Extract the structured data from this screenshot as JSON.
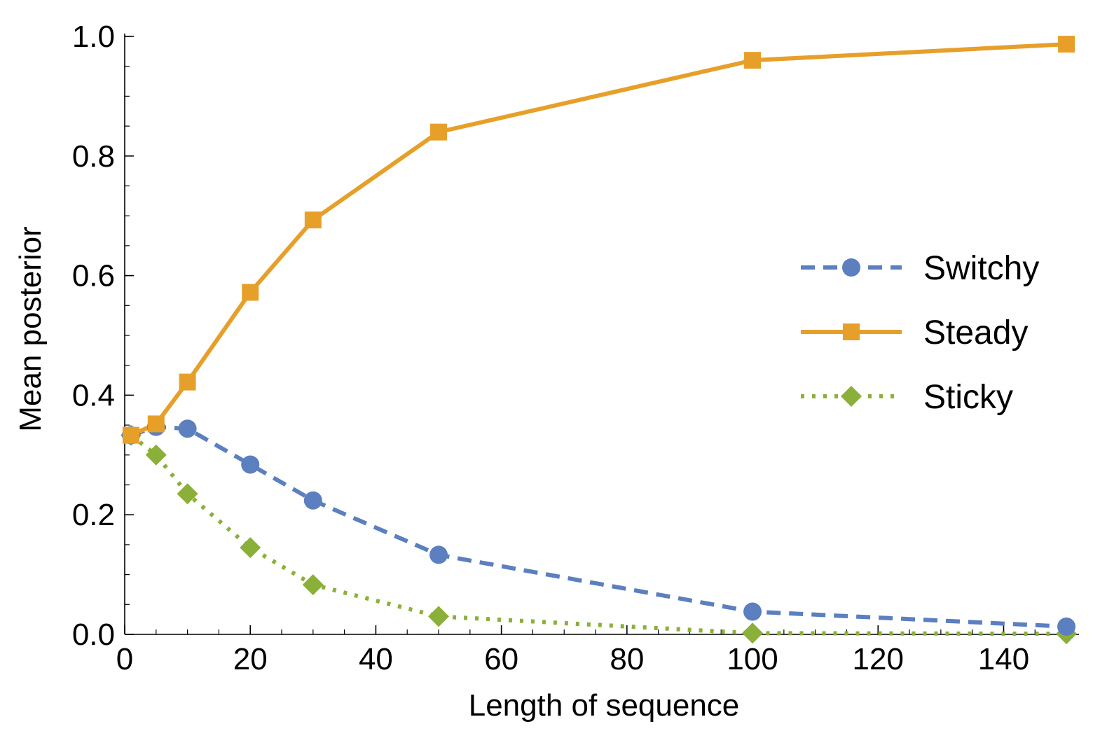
{
  "chart_data": {
    "type": "line",
    "title": "",
    "xlabel": "Length of sequence",
    "ylabel": "Mean posterior",
    "xlim": [
      0,
      152
    ],
    "ylim": [
      0,
      1.0
    ],
    "x_ticks": [
      0,
      20,
      40,
      60,
      80,
      100,
      120,
      140
    ],
    "x_tick_labels": [
      "0",
      "20",
      "40",
      "60",
      "80",
      "100",
      "120",
      "140"
    ],
    "y_ticks": [
      0.0,
      0.2,
      0.4,
      0.6,
      0.8,
      1.0
    ],
    "y_tick_labels": [
      "0.0",
      "0.2",
      "0.4",
      "0.6",
      "0.8",
      "1.0"
    ],
    "x_minor_step": 5,
    "y_minor_step": 0.05,
    "grid": false,
    "legend_position": "right",
    "x": [
      1,
      5,
      10,
      20,
      30,
      50,
      100,
      150
    ],
    "series": [
      {
        "name": "Switchy",
        "color": "#5b7fbf",
        "line_style": "dashed",
        "marker": "circle",
        "values": [
          0.333,
          0.347,
          0.344,
          0.284,
          0.224,
          0.133,
          0.038,
          0.013
        ]
      },
      {
        "name": "Steady",
        "color": "#e6a02a",
        "line_style": "solid",
        "marker": "square",
        "values": [
          0.333,
          0.352,
          0.422,
          0.572,
          0.693,
          0.84,
          0.96,
          0.987
        ]
      },
      {
        "name": "Sticky",
        "color": "#8bb03a",
        "line_style": "dotted",
        "marker": "diamond",
        "values": [
          0.333,
          0.3,
          0.235,
          0.145,
          0.083,
          0.03,
          0.002,
          0.001
        ]
      }
    ]
  }
}
